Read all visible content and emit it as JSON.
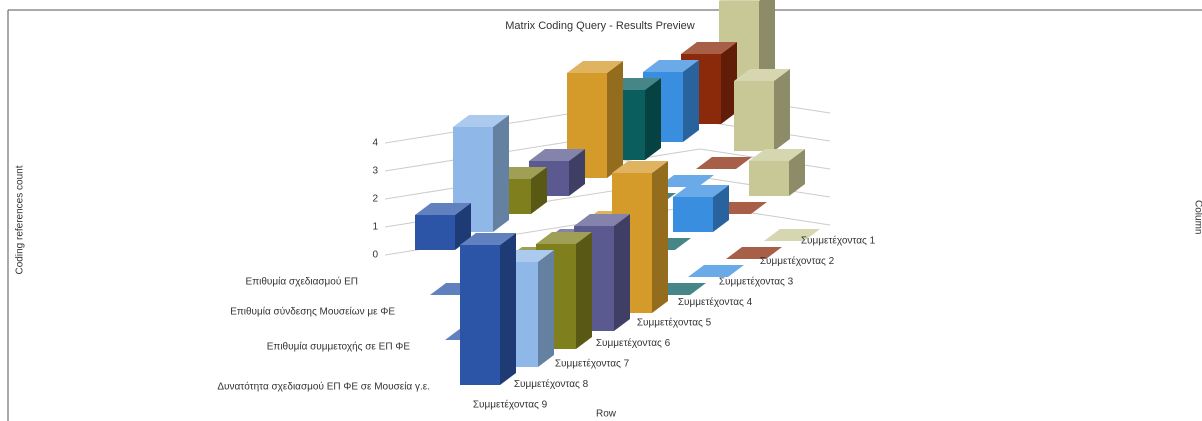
{
  "chart_data": {
    "type": "bar3d",
    "title": "Matrix Coding Query - Results Preview",
    "y_label": "Coding references count",
    "x_label": "Row",
    "z_label": "Column",
    "categories": [
      "Επιθυμία σχεδιασμού ΕΠ",
      "Επιθυμία σύνδεσης Μουσείων με ΦΕ",
      "Επιθυμία συμμετοχής σε ΕΠ ΦΕ",
      "Δυνατότητα σχεδιασμού ΕΠ ΦΕ σε Μουσεία γ.ε."
    ],
    "series": [
      {
        "name": "Συμμετέχοντας 1",
        "color": "#c8c896",
        "values": [
          3,
          2,
          1,
          0
        ]
      },
      {
        "name": "Συμμετέχοντας 2",
        "color": "#8b2a0a",
        "values": [
          2,
          0,
          0,
          0
        ]
      },
      {
        "name": "Συμμετέχοντας 3",
        "color": "#3a8ee0",
        "values": [
          2,
          0,
          1,
          0
        ]
      },
      {
        "name": "Συμμετέχοντας 4",
        "color": "#0a5e5e",
        "values": [
          2,
          0,
          0,
          0
        ]
      },
      {
        "name": "Συμμετέχοντας 5",
        "color": "#d49a2a",
        "values": [
          3,
          0,
          0,
          4
        ]
      },
      {
        "name": "Συμμετέχοντας 6",
        "color": "#5a5a90",
        "values": [
          1,
          0,
          0,
          3
        ]
      },
      {
        "name": "Συμμετέχοντας 7",
        "color": "#7f7f1e",
        "values": [
          1,
          0,
          0,
          3
        ]
      },
      {
        "name": "Συμμετέχοντας 8",
        "color": "#8fb8e8",
        "values": [
          3,
          0,
          0,
          3
        ]
      },
      {
        "name": "Συμμετέχοντας 9",
        "color": "#2c55a8",
        "values": [
          1,
          0,
          0,
          4
        ]
      }
    ],
    "ylim": [
      0,
      4
    ],
    "yticks": [
      0,
      1,
      2,
      3,
      4
    ],
    "grid": true
  }
}
